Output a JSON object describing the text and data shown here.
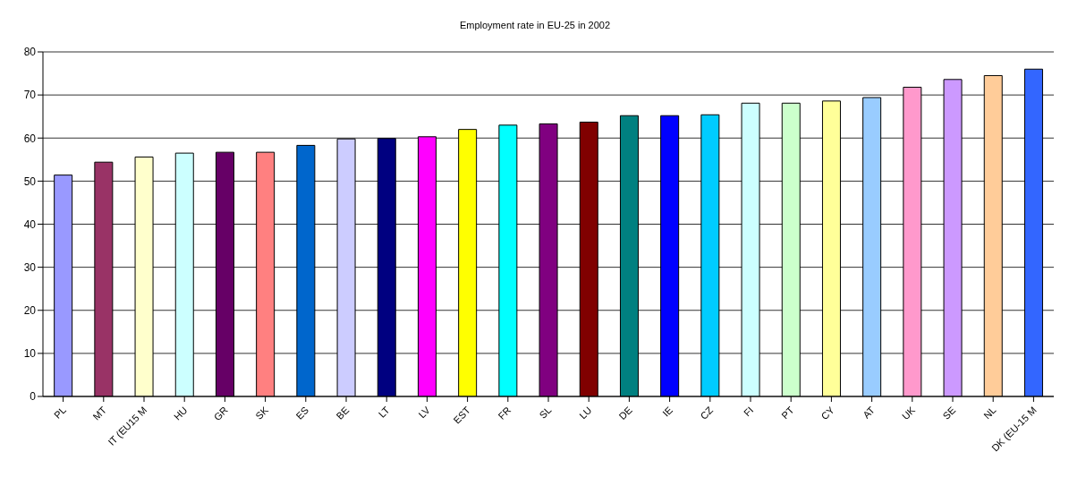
{
  "chart_data": {
    "type": "bar",
    "title": "Employment rate in EU-25 in 2002",
    "categories": [
      "PL",
      "MT",
      "IT (EU15 M",
      "HU",
      "GR",
      "SK",
      "ES",
      "BE",
      "LT",
      "LV",
      "EST",
      "FR",
      "SL",
      "LU",
      "DE",
      "IE",
      "CZ",
      "FI",
      "PT",
      "CY",
      "AT",
      "UK",
      "SE",
      "NL",
      "DK (EU-15 M"
    ],
    "values": [
      51.4,
      54.4,
      55.6,
      56.5,
      56.7,
      56.7,
      58.3,
      59.8,
      59.9,
      60.3,
      62.0,
      63.0,
      63.3,
      63.7,
      65.2,
      65.2,
      65.4,
      68.1,
      68.1,
      68.6,
      69.4,
      71.8,
      73.6,
      74.5,
      76.0
    ],
    "colors": [
      "#9999ff",
      "#993366",
      "#ffffcc",
      "#ccffff",
      "#660066",
      "#ff8080",
      "#0066cc",
      "#ccccff",
      "#000080",
      "#ff00ff",
      "#ffff00",
      "#00ffff",
      "#800080",
      "#800000",
      "#008080",
      "#0000ff",
      "#00ccff",
      "#ccffff",
      "#ccffcc",
      "#ffff99",
      "#99ccff",
      "#ff99cc",
      "#cc99ff",
      "#ffcc99",
      "#3366ff"
    ],
    "ylim": [
      0,
      80
    ],
    "yticks": [
      0,
      10,
      20,
      30,
      40,
      50,
      60,
      70,
      80
    ],
    "grid": "y",
    "legend": false
  }
}
